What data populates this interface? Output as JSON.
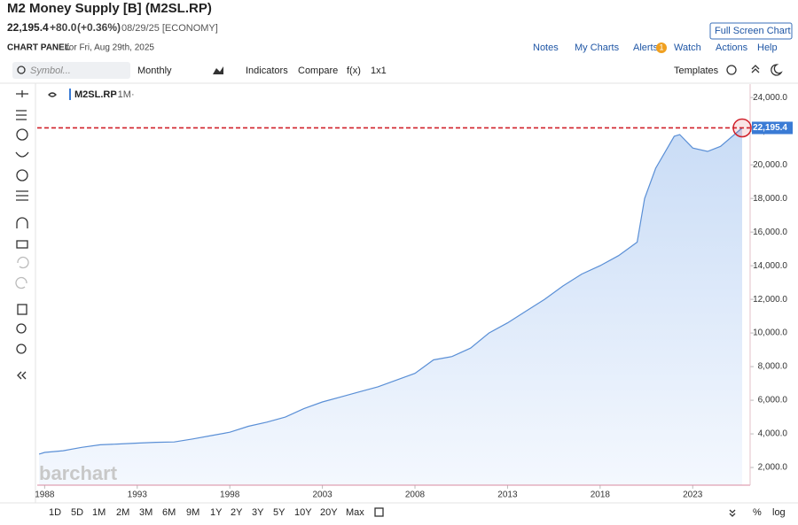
{
  "header": {
    "title": "M2 Money Supply [B] (M2SL.RP)",
    "last": "22,195.4",
    "change": "+80.0",
    "change_pct": "(+0.36%)",
    "date_info": "08/29/25 [ECONOMY]",
    "full_screen": "Full Screen Chart"
  },
  "panel": {
    "label": "CHART PANEL",
    "date": "for Fri, Aug 29th, 2025",
    "links": [
      "Notes",
      "My Charts",
      "Alerts",
      "Watch",
      "Actions",
      "Help"
    ],
    "alerts_badge": "1"
  },
  "toolbar": {
    "symbol_placeholder": "Symbol...",
    "interval": "Monthly",
    "buttons": [
      "Indicators",
      "Compare",
      "f(x)",
      "1x1"
    ],
    "templates": "Templates"
  },
  "watermark": "barchart",
  "periods": [
    "1D",
    "5D",
    "1M",
    "2M",
    "3M",
    "6M",
    "9M",
    "1Y",
    "2Y",
    "3Y",
    "5Y",
    "10Y",
    "20Y",
    "Max"
  ],
  "scale_buttons": [
    "%",
    "log"
  ],
  "chart_data": {
    "type": "area",
    "interval_label": "·1M·",
    "x": [
      1987.7,
      1988,
      1989,
      1990,
      1991,
      1992,
      1993,
      1994,
      1995,
      1996,
      1997,
      1998,
      1999,
      2000,
      2001,
      2002,
      2003,
      2004,
      2005,
      2006,
      2007,
      2008,
      2009,
      2010,
      2011,
      2012,
      2013,
      2014,
      2015,
      2016,
      2017,
      2018,
      2019,
      2020,
      2020.4,
      2021,
      2022,
      2022.3,
      2023,
      2023.8,
      2024.5,
      2025.67
    ],
    "series": [
      {
        "name": "M2SL.RP",
        "color": "#5a8fd6",
        "values": [
          2800,
          2900,
          3000,
          3200,
          3350,
          3400,
          3450,
          3500,
          3520,
          3700,
          3900,
          4100,
          4450,
          4700,
          5000,
          5500,
          5900,
          6200,
          6500,
          6800,
          7200,
          7600,
          8400,
          8600,
          9100,
          10000,
          10600,
          11300,
          12000,
          12800,
          13500,
          14000,
          14600,
          15400,
          18000,
          19800,
          21700,
          21800,
          21000,
          20800,
          21100,
          22195.4
        ]
      }
    ],
    "xlim": [
      1987.6,
      2026.1
    ],
    "ylim": [
      950,
      24800
    ],
    "xticks": [
      1988,
      1993,
      1998,
      2003,
      2008,
      2013,
      2018,
      2023
    ],
    "yticks": [
      {
        "value": 2000,
        "label": "2,000.0"
      },
      {
        "value": 4000,
        "label": "4,000.0"
      },
      {
        "value": 6000,
        "label": "6,000.0"
      },
      {
        "value": 8000,
        "label": "8,000.0"
      },
      {
        "value": 10000,
        "label": "10,000.0"
      },
      {
        "value": 12000,
        "label": "12,000.0"
      },
      {
        "value": 14000,
        "label": "14,000.0"
      },
      {
        "value": 16000,
        "label": "16,000.0"
      },
      {
        "value": 18000,
        "label": "18,000.0"
      },
      {
        "value": 20000,
        "label": "20,000.0"
      },
      {
        "value": 22000,
        "label": "22,000.0"
      },
      {
        "value": 24000,
        "label": "24,000.0"
      }
    ],
    "reference_line": {
      "value": 22195.4,
      "label": "22,195.4",
      "color": "#d0202a"
    }
  }
}
